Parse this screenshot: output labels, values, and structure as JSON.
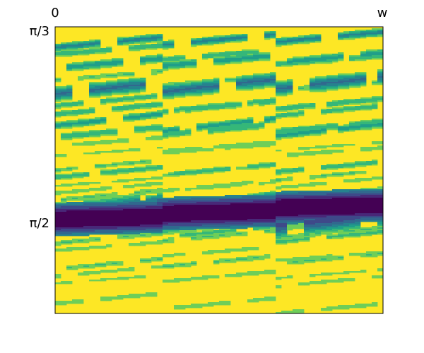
{
  "chart_data": {
    "type": "heatmap",
    "title": "",
    "xlabel": "",
    "ylabel": "",
    "x_ticks": [
      "0",
      "w"
    ],
    "y_ticks": [
      "π/3",
      "π/2"
    ],
    "colormap": [
      "#fde725",
      "#b5de2b",
      "#6ece58",
      "#35b779",
      "#1f9e89",
      "#26828e",
      "#31688e",
      "#3e4989",
      "#482878",
      "#440154"
    ],
    "background_color": "#fde725",
    "frame_color": "#000000",
    "bands": [
      {
        "y": 0.072,
        "w": 0.014,
        "l": 0.85,
        "s": -0.012
      },
      {
        "y": 0.095,
        "w": 0.012,
        "l": 0.6,
        "s": -0.01
      },
      {
        "y": 0.145,
        "w": 0.016,
        "l": 0.7,
        "s": -0.012
      },
      {
        "y": 0.185,
        "w": 0.012,
        "l": 0.45,
        "s": -0.01
      },
      {
        "y": 0.235,
        "w": 0.024,
        "l": 1.0,
        "s": -0.014
      },
      {
        "y": 0.275,
        "w": 0.012,
        "l": 0.55,
        "s": -0.012
      },
      {
        "y": 0.305,
        "w": 0.012,
        "l": 0.6,
        "s": -0.012
      },
      {
        "y": 0.345,
        "w": 0.014,
        "l": 0.7,
        "s": -0.014
      },
      {
        "y": 0.385,
        "w": 0.014,
        "l": 0.6,
        "s": -0.012
      },
      {
        "y": 0.415,
        "w": 0.012,
        "l": 0.4,
        "s": -0.01
      },
      {
        "y": 0.45,
        "w": 0.01,
        "l": 0.35,
        "s": -0.01
      },
      {
        "y": 0.5,
        "w": 0.01,
        "l": 0.45,
        "s": -0.012
      },
      {
        "y": 0.525,
        "w": 0.012,
        "l": 0.55,
        "s": -0.012
      },
      {
        "y": 0.555,
        "w": 0.01,
        "l": 0.35,
        "s": -0.01
      },
      {
        "y": 0.58,
        "w": 0.01,
        "l": 0.4,
        "s": -0.012
      },
      {
        "y": 0.605,
        "w": 0.012,
        "l": 0.45,
        "s": -0.012
      },
      {
        "y": 0.64,
        "w": 0.016,
        "l": 0.85,
        "s": -0.014
      },
      {
        "y": 0.66,
        "w": 0.04,
        "l": 1.2,
        "s": -0.014
      },
      {
        "y": 0.69,
        "w": 0.012,
        "l": 0.7,
        "s": -0.014
      },
      {
        "y": 0.715,
        "w": 0.012,
        "l": 0.5,
        "s": -0.012
      },
      {
        "y": 0.755,
        "w": 0.012,
        "l": 0.45,
        "s": -0.012
      },
      {
        "y": 0.78,
        "w": 0.01,
        "l": 0.4,
        "s": -0.01
      },
      {
        "y": 0.845,
        "w": 0.012,
        "l": 0.45,
        "s": -0.012
      },
      {
        "y": 0.87,
        "w": 0.01,
        "l": 0.4,
        "s": -0.012
      },
      {
        "y": 0.895,
        "w": 0.01,
        "l": 0.35,
        "s": -0.01
      },
      {
        "y": 0.965,
        "w": 0.012,
        "l": 0.4,
        "s": -0.012
      }
    ],
    "dark_band": {
      "y": 0.662,
      "w": 0.024,
      "s": -0.01
    }
  }
}
